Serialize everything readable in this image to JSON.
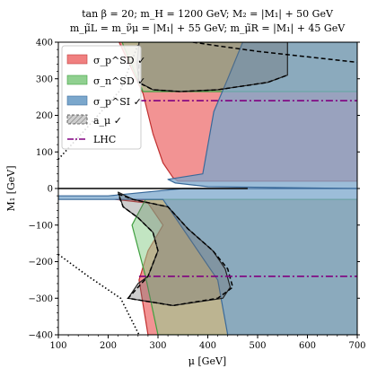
{
  "chart_data": {
    "type": "area",
    "title_line1": "tan β = 20; m_H = 1200 GeV; M₂ = |M₁| + 50 GeV",
    "title_line2": "m_μ̃L = m_ν̃μ = |M₁| + 55 GeV; m_μ̃R = |M₁| + 45 GeV",
    "xlabel": "μ [GeV]",
    "ylabel": "M₁ [GeV]",
    "xlim": [
      100,
      700
    ],
    "ylim": [
      -400,
      400
    ],
    "xticks": [
      100,
      200,
      300,
      400,
      500,
      600,
      700
    ],
    "yticks": [
      -400,
      -300,
      -200,
      -100,
      0,
      100,
      200,
      300,
      400
    ],
    "legend_position": "top-left",
    "series": [
      {
        "name": "σ_p^SD ✓",
        "color": "#f08080",
        "regions": [
          [
            [
              222,
              400
            ],
            [
              270,
              260
            ],
            [
              290,
              150
            ],
            [
              310,
              70
            ],
            [
              330,
              30
            ],
            [
              340,
              20
            ],
            [
              360,
              20
            ],
            [
              420,
              20
            ],
            [
              700,
              20
            ],
            [
              700,
              400
            ]
          ],
          [
            [
              215,
              -30
            ],
            [
              700,
              -30
            ],
            [
              700,
              -400
            ],
            [
              280,
              -400
            ],
            [
              262,
              -250
            ],
            [
              280,
              -170
            ],
            [
              310,
              -100
            ],
            [
              280,
              -40
            ]
          ]
        ]
      },
      {
        "name": "σ_n^SD ✓",
        "color": "#90d090",
        "regions": [
          [
            [
              228,
              400
            ],
            [
              270,
              265
            ],
            [
              700,
              265
            ],
            [
              700,
              400
            ]
          ],
          [
            [
              248,
              -100
            ],
            [
              275,
              -240
            ],
            [
              300,
              -400
            ],
            [
              700,
              -400
            ],
            [
              700,
              -30
            ],
            [
              275,
              -30
            ]
          ]
        ]
      },
      {
        "name": "σ_p^SI ✓",
        "color": "#7ba7cc",
        "regions": [
          [
            [
              320,
              25
            ],
            [
              390,
              40
            ],
            [
              412,
              210
            ],
            [
              440,
              300
            ],
            [
              470,
              400
            ],
            [
              700,
              400
            ],
            [
              700,
              0
            ],
            [
              400,
              5
            ],
            [
              335,
              15
            ]
          ],
          [
            [
              100,
              -30
            ],
            [
              310,
              -30
            ],
            [
              420,
              -250
            ],
            [
              440,
              -400
            ],
            [
              700,
              -400
            ],
            [
              700,
              0
            ],
            [
              350,
              0
            ],
            [
              200,
              -20
            ],
            [
              100,
              -20
            ]
          ]
        ]
      },
      {
        "name": "a_μ ✓",
        "color": "#707070",
        "regions": [
          [
            [
              262,
              400
            ],
            [
              258,
              340
            ],
            [
              262,
              290
            ],
            [
              290,
              270
            ],
            [
              345,
              265
            ],
            [
              420,
              270
            ],
            [
              520,
              290
            ],
            [
              560,
              310
            ],
            [
              560,
              400
            ]
          ],
          [
            [
              240,
              -300
            ],
            [
              330,
              -320
            ],
            [
              430,
              -300
            ],
            [
              445,
              -270
            ],
            [
              435,
              -220
            ],
            [
              410,
              -170
            ],
            [
              360,
              -110
            ],
            [
              320,
              -50
            ],
            [
              250,
              -30
            ],
            [
              220,
              -10
            ],
            [
              230,
              -50
            ],
            [
              260,
              -80
            ],
            [
              290,
              -120
            ],
            [
              300,
              -170
            ],
            [
              280,
              -240
            ],
            [
              260,
              -260
            ]
          ]
        ]
      },
      {
        "name": "LHC",
        "color": "#800080",
        "lines": [
          [
            [
              262,
              240
            ],
            [
              700,
              240
            ]
          ],
          [
            [
              262,
              -240
            ],
            [
              700,
              -240
            ]
          ]
        ]
      }
    ],
    "annotations": {
      "boundary_left_upper": [
        [
          100,
          80
        ],
        [
          160,
          170
        ],
        [
          225,
          270
        ],
        [
          262,
          400
        ]
      ],
      "boundary_left_lower": [
        [
          100,
          -180
        ],
        [
          160,
          -240
        ],
        [
          225,
          -300
        ],
        [
          262,
          -400
        ]
      ],
      "dashed_upper": [
        [
          262,
          340
        ],
        [
          260,
          290
        ],
        [
          290,
          270
        ],
        [
          345,
          265
        ],
        [
          420,
          270
        ],
        [
          520,
          290
        ],
        [
          560,
          310
        ]
      ],
      "dashed_upper_top": [
        [
          370,
          400
        ],
        [
          420,
          390
        ],
        [
          500,
          375
        ],
        [
          600,
          360
        ],
        [
          700,
          345
        ]
      ],
      "dashed_lower": [
        [
          220,
          -15
        ],
        [
          250,
          -30
        ],
        [
          320,
          -50
        ],
        [
          360,
          -110
        ],
        [
          410,
          -170
        ],
        [
          440,
          -220
        ],
        [
          450,
          -270
        ],
        [
          420,
          -300
        ],
        [
          330,
          -320
        ],
        [
          240,
          -300
        ],
        [
          280,
          -240
        ],
        [
          300,
          -170
        ],
        [
          290,
          -120
        ],
        [
          260,
          -80
        ],
        [
          230,
          -50
        ],
        [
          220,
          -15
        ]
      ],
      "solid_black_zero": [
        [
          100,
          0
        ],
        [
          480,
          0
        ]
      ]
    }
  }
}
